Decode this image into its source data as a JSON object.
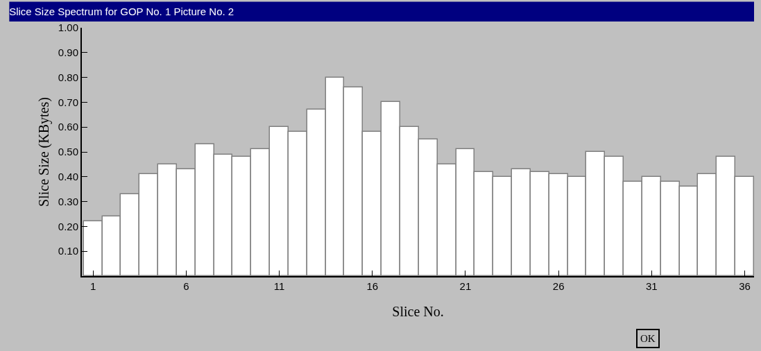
{
  "chart_data": {
    "type": "bar",
    "title": "Slice Size Spectrum for GOP No. 1 Picture No. 2",
    "xlabel": "Slice No.",
    "ylabel": "Slice Size (KBytes)",
    "x": [
      1,
      2,
      3,
      4,
      5,
      6,
      7,
      8,
      9,
      10,
      11,
      12,
      13,
      14,
      15,
      16,
      17,
      18,
      19,
      20,
      21,
      22,
      23,
      24,
      25,
      26,
      27,
      28,
      29,
      30,
      31,
      32,
      33,
      34,
      35,
      36
    ],
    "values": [
      0.22,
      0.24,
      0.33,
      0.41,
      0.45,
      0.43,
      0.53,
      0.49,
      0.48,
      0.51,
      0.6,
      0.58,
      0.67,
      0.8,
      0.76,
      0.58,
      0.7,
      0.6,
      0.55,
      0.45,
      0.51,
      0.42,
      0.4,
      0.43,
      0.42,
      0.41,
      0.4,
      0.5,
      0.48,
      0.38,
      0.4,
      0.38,
      0.36,
      0.41,
      0.48,
      0.4
    ],
    "color": "#ffffff",
    "xlim": [
      0.4,
      36.5
    ],
    "xticks": [
      1,
      6,
      11,
      16,
      21,
      26,
      31,
      36
    ],
    "ylim": [
      0,
      1.0
    ],
    "yticks": [
      {
        "value": 0.1,
        "label": "0.10"
      },
      {
        "value": 0.2,
        "label": "0.20"
      },
      {
        "value": 0.3,
        "label": "0.30"
      },
      {
        "value": 0.4,
        "label": "0.40"
      },
      {
        "value": 0.5,
        "label": "0.50"
      },
      {
        "value": 0.6,
        "label": "0.60"
      },
      {
        "value": 0.7,
        "label": "0.70"
      },
      {
        "value": 0.8,
        "label": "0.80"
      },
      {
        "value": 0.9,
        "label": "0.90"
      },
      {
        "value": 1.0,
        "label": "1.00"
      }
    ],
    "grid": false,
    "annotations": [
      "OK"
    ]
  }
}
